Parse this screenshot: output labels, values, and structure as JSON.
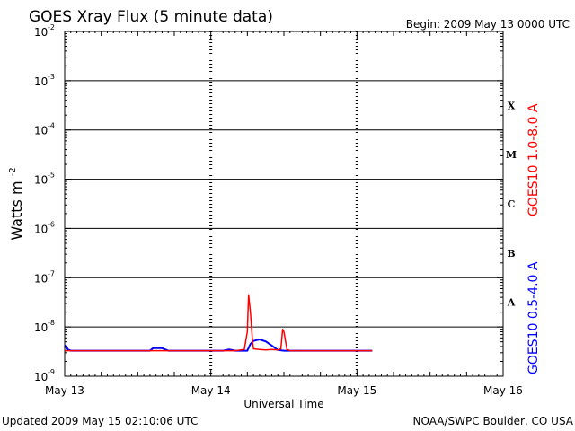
{
  "header": {
    "title": "GOES Xray Flux (5 minute data)",
    "begin": "Begin:  2009 May 13 0000 UTC"
  },
  "footer": {
    "updated": "Updated 2009 May 15 02:10:06 UTC",
    "credit": "NOAA/SWPC Boulder, CO USA"
  },
  "colors": {
    "long_channel": "#ff0000",
    "short_channel": "#0000ff",
    "axes": "#000000"
  },
  "chart_data": {
    "type": "line",
    "title": "GOES Xray Flux (5 minute data)",
    "xlabel": "Universal Time",
    "ylabel": "Watts m",
    "ylabel_superscript": "-2",
    "y_scale": "log",
    "ylim": [
      1e-09,
      0.01
    ],
    "xlim": [
      0,
      72
    ],
    "x_unit": "hours since 2009 May 13 0000 UTC",
    "x_ticks": [
      {
        "value": 0,
        "label": "May 13"
      },
      {
        "value": 24,
        "label": "May 14"
      },
      {
        "value": 48,
        "label": "May 15"
      },
      {
        "value": 72,
        "label": "May 16"
      }
    ],
    "y_ticks": [
      {
        "exp": -9,
        "base": "10",
        "sup": "-9"
      },
      {
        "exp": -8,
        "base": "10",
        "sup": "-8"
      },
      {
        "exp": -7,
        "base": "10",
        "sup": "-7"
      },
      {
        "exp": -6,
        "base": "10",
        "sup": "-6"
      },
      {
        "exp": -5,
        "base": "10",
        "sup": "-5"
      },
      {
        "exp": -4,
        "base": "10",
        "sup": "-4"
      },
      {
        "exp": -3,
        "base": "10",
        "sup": "-3"
      },
      {
        "exp": -2,
        "base": "10",
        "sup": "-2"
      }
    ],
    "flare_classes": [
      {
        "label": "X",
        "exp": -3.5
      },
      {
        "label": "M",
        "exp": -4.5
      },
      {
        "label": "C",
        "exp": -5.5
      },
      {
        "label": "B",
        "exp": -6.5
      },
      {
        "label": "A",
        "exp": -7.5
      }
    ],
    "grid": true,
    "legend_position": "right-side vertical",
    "series": [
      {
        "name": "GOES10 1.0-8.0 A",
        "color": "#ff0000",
        "x": [
          0,
          2,
          4,
          8,
          12,
          14,
          16,
          18,
          20,
          22,
          24,
          26,
          28,
          29.5,
          30,
          30.2,
          30.5,
          30.8,
          31,
          32,
          33,
          34,
          35,
          35.5,
          35.8,
          36,
          36.5,
          37,
          38,
          40,
          42,
          44,
          46,
          48,
          50.5
        ],
        "y": [
          3.3e-09,
          3.3e-09,
          3.3e-09,
          3.3e-09,
          3.3e-09,
          3.3e-09,
          3.3e-09,
          3.3e-09,
          3.3e-09,
          3.3e-09,
          3.3e-09,
          3.3e-09,
          3.3e-09,
          3.5e-09,
          8e-09,
          4.5e-08,
          2e-08,
          6e-09,
          3.6e-09,
          3.5e-09,
          3.4e-09,
          3.5e-09,
          3.4e-09,
          3.6e-09,
          9e-09,
          8e-09,
          3.5e-09,
          3.3e-09,
          3.3e-09,
          3.3e-09,
          3.3e-09,
          3.3e-09,
          3.3e-09,
          3.3e-09,
          3.3e-09
        ]
      },
      {
        "name": "GOES10 0.5-4.0 A",
        "color": "#0000ff",
        "x": [
          0,
          0.2,
          0.5,
          1,
          2,
          4,
          8,
          12,
          14,
          14.5,
          16,
          16.5,
          17,
          18,
          20,
          22,
          24,
          26,
          27,
          28,
          29,
          30,
          30.5,
          31,
          32,
          33,
          34,
          35,
          36,
          37,
          38,
          40,
          42,
          44,
          46,
          48,
          50.5
        ],
        "y": [
          3.8e-09,
          4.2e-09,
          3.5e-09,
          3.3e-09,
          3.3e-09,
          3.3e-09,
          3.3e-09,
          3.3e-09,
          3.3e-09,
          3.7e-09,
          3.7e-09,
          3.5e-09,
          3.3e-09,
          3.3e-09,
          3.3e-09,
          3.3e-09,
          3.3e-09,
          3.3e-09,
          3.5e-09,
          3.3e-09,
          3.3e-09,
          3.3e-09,
          4.5e-09,
          5.2e-09,
          5.6e-09,
          5.1e-09,
          4.2e-09,
          3.4e-09,
          3.3e-09,
          3.3e-09,
          3.3e-09,
          3.3e-09,
          3.3e-09,
          3.3e-09,
          3.3e-09,
          3.3e-09,
          3.3e-09
        ]
      }
    ]
  }
}
